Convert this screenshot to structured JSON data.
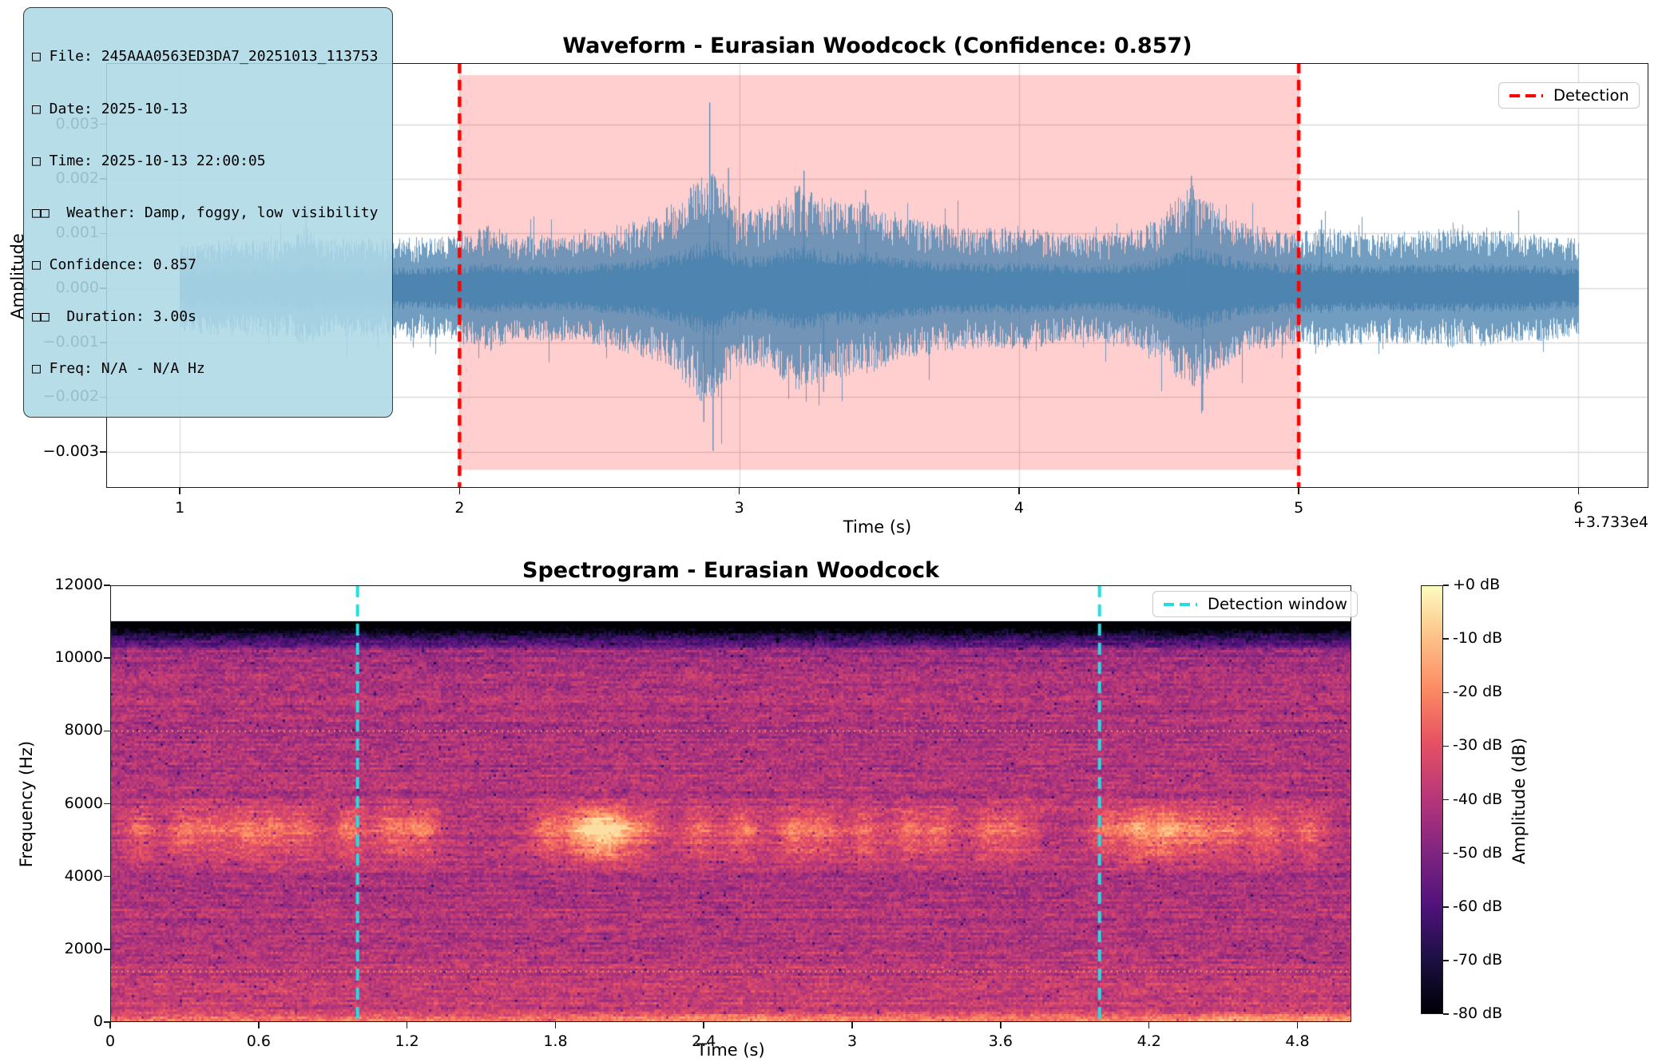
{
  "figure": {
    "background": "#ffffff"
  },
  "info_box": {
    "lines": [
      "□ File: 245AAA0563ED3DA7_20251013_113753",
      "□ Date: 2025-10-13",
      "□ Time: 2025-10-13 22:00:05",
      "□□  Weather: Damp, foggy, low visibility",
      "□ Confidence: 0.857",
      "□□  Duration: 3.00s",
      "□ Freq: N/A - N/A Hz"
    ],
    "bg": "#ADD8E6",
    "border_color": "#3a3a3a"
  },
  "chart_data": [
    {
      "type": "line",
      "id": "waveform",
      "title": "Waveform - Eurasian Woodcock (Confidence: 0.857)",
      "xlabel": "Time (s)",
      "ylabel": "Amplitude",
      "x_offset_text": "+3.733e4",
      "xlim": [
        0.737,
        6.25
      ],
      "ylim": [
        -0.00366,
        0.00412
      ],
      "grid": true,
      "line_color": "#4e84b0",
      "xticks": [
        {
          "v": 1,
          "label": "1"
        },
        {
          "v": 2,
          "label": "2"
        },
        {
          "v": 3,
          "label": "3"
        },
        {
          "v": 4,
          "label": "4"
        },
        {
          "v": 5,
          "label": "5"
        },
        {
          "v": 6,
          "label": "6"
        }
      ],
      "yticks": [
        {
          "v": 0.003,
          "label": "0.003"
        },
        {
          "v": 0.002,
          "label": "0.002"
        },
        {
          "v": 0.001,
          "label": "0.001"
        },
        {
          "v": 0.0,
          "label": "0.000"
        },
        {
          "v": -0.001,
          "label": "−0.001"
        },
        {
          "v": -0.002,
          "label": "−0.002"
        },
        {
          "v": -0.003,
          "label": "−0.003"
        }
      ],
      "legend": {
        "label": "Detection",
        "position": "upper right"
      },
      "detection": {
        "start_s": 2.0,
        "end_s": 5.0,
        "line_color": "#ff0000",
        "fill_color": "rgba(255,0,0,0.19)",
        "span_v": [
          -0.00333,
          0.0039
        ]
      },
      "signal_span_s": [
        1.0,
        6.0
      ],
      "noise_envelope": [
        [
          1.0,
          0.00085
        ],
        [
          1.4,
          0.0009
        ],
        [
          1.45,
          0.00115
        ],
        [
          1.5,
          0.0009
        ],
        [
          2.0,
          0.00095
        ],
        [
          2.1,
          0.0012
        ],
        [
          2.2,
          0.00095
        ],
        [
          2.45,
          0.001
        ],
        [
          2.6,
          0.0012
        ],
        [
          2.7,
          0.00135
        ],
        [
          2.8,
          0.0017
        ],
        [
          2.88,
          0.0022
        ],
        [
          2.92,
          0.0021
        ],
        [
          3.0,
          0.0014
        ],
        [
          3.1,
          0.0015
        ],
        [
          3.2,
          0.0019
        ],
        [
          3.3,
          0.0017
        ],
        [
          3.4,
          0.0016
        ],
        [
          3.5,
          0.00155
        ],
        [
          3.6,
          0.0013
        ],
        [
          3.75,
          0.00115
        ],
        [
          3.9,
          0.0011
        ],
        [
          4.0,
          0.00115
        ],
        [
          4.15,
          0.001
        ],
        [
          4.3,
          0.001
        ],
        [
          4.45,
          0.00115
        ],
        [
          4.55,
          0.0016
        ],
        [
          4.62,
          0.0019
        ],
        [
          4.7,
          0.0016
        ],
        [
          4.8,
          0.0012
        ],
        [
          4.95,
          0.00105
        ],
        [
          5.1,
          0.0011
        ],
        [
          5.25,
          0.001
        ],
        [
          5.4,
          0.00105
        ],
        [
          5.55,
          0.0011
        ],
        [
          5.7,
          0.00105
        ],
        [
          5.85,
          0.001
        ],
        [
          6.0,
          0.0009
        ]
      ],
      "spikes": [
        [
          1.45,
          0.00142
        ],
        [
          2.872,
          -0.00245
        ],
        [
          2.893,
          0.0034
        ],
        [
          2.905,
          -0.00298
        ],
        [
          2.96,
          0.0022
        ],
        [
          3.23,
          0.00215
        ],
        [
          3.3,
          -0.0019
        ],
        [
          3.45,
          0.0018
        ],
        [
          4.615,
          0.00205
        ],
        [
          4.655,
          -0.00225
        ],
        [
          5.08,
          0.00125
        ]
      ]
    },
    {
      "type": "heatmap",
      "id": "spectrogram",
      "title": "Spectrogram - Eurasian Woodcock",
      "xlabel": "Time (s)",
      "ylabel": "Frequency (Hz)",
      "xlim": [
        0,
        5.018
      ],
      "ylim": [
        0,
        12000
      ],
      "xticks": [
        {
          "v": 0,
          "label": "0"
        },
        {
          "v": 0.6,
          "label": "0.6"
        },
        {
          "v": 1.2,
          "label": "1.2"
        },
        {
          "v": 1.8,
          "label": "1.8"
        },
        {
          "v": 2.4,
          "label": "2.4"
        },
        {
          "v": 3,
          "label": "3"
        },
        {
          "v": 3.6,
          "label": "3.6"
        },
        {
          "v": 4.2,
          "label": "4.2"
        },
        {
          "v": 4.8,
          "label": "4.8"
        }
      ],
      "yticks": [
        {
          "v": 0,
          "label": "0"
        },
        {
          "v": 2000,
          "label": "2000"
        },
        {
          "v": 4000,
          "label": "4000"
        },
        {
          "v": 6000,
          "label": "6000"
        },
        {
          "v": 8000,
          "label": "8000"
        },
        {
          "v": 10000,
          "label": "10000"
        },
        {
          "v": 12000,
          "label": "12000"
        }
      ],
      "legend": {
        "label": "Detection window",
        "position": "upper right"
      },
      "detection_window": {
        "start_s": 1.0,
        "end_s": 4.0,
        "line_color": "#1fdfe2"
      },
      "colormap": "magma",
      "db_range": [
        -80,
        0
      ],
      "background_db": -41,
      "nyquist_hz": 11025,
      "rolloff_start_hz": 10200,
      "dotted_lines_hz": [
        8000,
        1400
      ],
      "dotted_line_color": "rgba(248,160,90,0.9)",
      "call_band_hz": 5300,
      "call_events": [
        [
          0.12,
          14
        ],
        [
          0.3,
          15
        ],
        [
          0.42,
          13
        ],
        [
          0.55,
          16
        ],
        [
          0.66,
          14
        ],
        [
          0.78,
          13
        ],
        [
          0.97,
          17
        ],
        [
          1.14,
          15
        ],
        [
          1.26,
          16
        ],
        [
          1.77,
          16
        ],
        [
          1.9,
          22
        ],
        [
          1.98,
          26
        ],
        [
          2.05,
          24
        ],
        [
          2.16,
          15
        ],
        [
          2.38,
          14
        ],
        [
          2.56,
          16
        ],
        [
          2.76,
          17
        ],
        [
          2.88,
          15
        ],
        [
          3.05,
          14
        ],
        [
          3.23,
          15
        ],
        [
          3.36,
          14
        ],
        [
          3.55,
          15
        ],
        [
          3.67,
          13
        ],
        [
          4.03,
          15
        ],
        [
          4.16,
          24
        ],
        [
          4.28,
          25
        ],
        [
          4.4,
          17
        ],
        [
          4.52,
          15
        ],
        [
          4.67,
          16
        ],
        [
          4.85,
          14
        ]
      ],
      "colormap_stops": [
        [
          0.0,
          0,
          0,
          4
        ],
        [
          0.13,
          28,
          16,
          68
        ],
        [
          0.25,
          79,
          18,
          123
        ],
        [
          0.38,
          129,
          37,
          129
        ],
        [
          0.5,
          181,
          54,
          122
        ],
        [
          0.63,
          229,
          80,
          100
        ],
        [
          0.75,
          251,
          135,
          97
        ],
        [
          0.88,
          254,
          194,
          135
        ],
        [
          1.0,
          252,
          253,
          191
        ]
      ],
      "colorbar": {
        "label": "Amplitude (dB)",
        "ticks": [
          "+0 dB",
          "-10 dB",
          "-20 dB",
          "-30 dB",
          "-40 dB",
          "-50 dB",
          "-60 dB",
          "-70 dB",
          "-80 dB"
        ]
      }
    }
  ]
}
